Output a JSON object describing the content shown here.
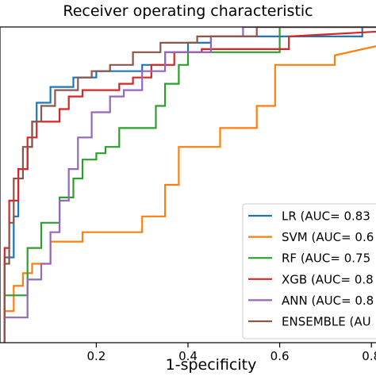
{
  "chart_data": {
    "type": "line",
    "title": "Receiver operating characteristic",
    "xlabel": "1-specificity",
    "ylabel": "",
    "xlim": [
      -0.01,
      0.81
    ],
    "ylim": [
      0.0,
      1.0
    ],
    "xticks": [
      0.2,
      0.4,
      0.6,
      0.8
    ],
    "xtick_labels": [
      "0.2",
      "0.4",
      "0.6",
      "0.8"
    ],
    "grid": false,
    "legend": "lower-right",
    "series": [
      {
        "name": "LR (AUC= 0.83",
        "color": "#1f77b4",
        "x": [
          0,
          0,
          0.02,
          0.02,
          0.03,
          0.03,
          0.05,
          0.05,
          0.06,
          0.06,
          0.07,
          0.07,
          0.1,
          0.1,
          0.15,
          0.15,
          0.2,
          0.2,
          0.3,
          0.3,
          0.35,
          0.35,
          0.4,
          0.4,
          0.45,
          0.45,
          0.78,
          0.78,
          1.0
        ],
        "y": [
          0,
          0.27,
          0.27,
          0.4,
          0.4,
          0.55,
          0.55,
          0.62,
          0.62,
          0.7,
          0.7,
          0.76,
          0.76,
          0.81,
          0.81,
          0.84,
          0.84,
          0.86,
          0.86,
          0.88,
          0.88,
          0.92,
          0.92,
          0.95,
          0.95,
          0.97,
          0.97,
          1.0,
          1.0
        ]
      },
      {
        "name": "SVM (AUC= 0.6",
        "color": "#ff7f0e",
        "x": [
          0,
          0,
          0.02,
          0.02,
          0.04,
          0.04,
          0.06,
          0.06,
          0.1,
          0.1,
          0.17,
          0.17,
          0.2,
          0.2,
          0.3,
          0.3,
          0.35,
          0.35,
          0.38,
          0.38,
          0.47,
          0.47,
          0.55,
          0.55,
          0.59,
          0.59,
          0.72,
          0.72,
          1.0
        ],
        "y": [
          0,
          0.1,
          0.1,
          0.18,
          0.18,
          0.22,
          0.22,
          0.25,
          0.25,
          0.32,
          0.32,
          0.35,
          0.35,
          0.35,
          0.35,
          0.4,
          0.4,
          0.5,
          0.5,
          0.62,
          0.62,
          0.68,
          0.68,
          0.75,
          0.75,
          0.88,
          0.88,
          0.91,
          1.0
        ]
      },
      {
        "name": "RF (AUC= 0.75",
        "color": "#2ca02c",
        "x": [
          0,
          0,
          0.05,
          0.05,
          0.08,
          0.08,
          0.12,
          0.12,
          0.15,
          0.15,
          0.17,
          0.17,
          0.2,
          0.2,
          0.22,
          0.22,
          0.25,
          0.25,
          0.33,
          0.33,
          0.35,
          0.35,
          0.38,
          0.38,
          0.4,
          0.4,
          0.6,
          0.6,
          1.0
        ],
        "y": [
          0,
          0.15,
          0.15,
          0.3,
          0.3,
          0.38,
          0.38,
          0.46,
          0.46,
          0.52,
          0.52,
          0.58,
          0.58,
          0.6,
          0.6,
          0.62,
          0.62,
          0.68,
          0.68,
          0.75,
          0.75,
          0.82,
          0.82,
          0.88,
          0.88,
          0.92,
          0.92,
          1.0,
          1.0
        ]
      },
      {
        "name": "XGB (AUC= 0.8",
        "color": "#d62728",
        "x": [
          0,
          0,
          0.01,
          0.01,
          0.03,
          0.03,
          0.05,
          0.05,
          0.07,
          0.07,
          0.12,
          0.12,
          0.14,
          0.14,
          0.17,
          0.17,
          0.25,
          0.25,
          0.28,
          0.28,
          0.32,
          0.32,
          0.37,
          0.37,
          0.43,
          0.43,
          0.62,
          0.62,
          1.0
        ],
        "y": [
          0,
          0.3,
          0.3,
          0.45,
          0.45,
          0.55,
          0.55,
          0.65,
          0.65,
          0.7,
          0.7,
          0.74,
          0.74,
          0.78,
          0.78,
          0.8,
          0.8,
          0.82,
          0.82,
          0.84,
          0.84,
          0.88,
          0.88,
          0.92,
          0.92,
          0.93,
          0.93,
          0.97,
          1.0
        ]
      },
      {
        "name": "ANN (AUC= 0.8",
        "color": "#9467bd",
        "x": [
          0,
          0,
          0.05,
          0.05,
          0.08,
          0.08,
          0.1,
          0.1,
          0.12,
          0.12,
          0.14,
          0.14,
          0.16,
          0.16,
          0.19,
          0.19,
          0.23,
          0.23,
          0.26,
          0.26,
          0.3,
          0.3,
          0.35,
          0.35,
          0.45,
          0.45,
          0.52,
          0.52,
          1.0
        ],
        "y": [
          0,
          0.08,
          0.08,
          0.2,
          0.2,
          0.25,
          0.25,
          0.35,
          0.35,
          0.45,
          0.45,
          0.55,
          0.55,
          0.65,
          0.65,
          0.73,
          0.73,
          0.78,
          0.78,
          0.8,
          0.8,
          0.86,
          0.86,
          0.92,
          0.92,
          0.97,
          0.97,
          1.0,
          1.0
        ]
      },
      {
        "name": "ENSEMBLE (AU",
        "color": "#8c564b",
        "x": [
          0,
          0,
          0.01,
          0.01,
          0.02,
          0.02,
          0.04,
          0.04,
          0.06,
          0.06,
          0.08,
          0.08,
          0.11,
          0.11,
          0.16,
          0.16,
          0.19,
          0.19,
          0.23,
          0.23,
          0.28,
          0.28,
          0.34,
          0.34,
          0.42,
          0.42,
          0.55,
          0.55,
          1.0
        ],
        "y": [
          0,
          0.25,
          0.25,
          0.38,
          0.38,
          0.52,
          0.52,
          0.62,
          0.62,
          0.7,
          0.7,
          0.75,
          0.75,
          0.8,
          0.8,
          0.84,
          0.84,
          0.86,
          0.86,
          0.88,
          0.88,
          0.92,
          0.92,
          0.95,
          0.95,
          0.97,
          0.97,
          1.0,
          1.0
        ]
      }
    ]
  }
}
